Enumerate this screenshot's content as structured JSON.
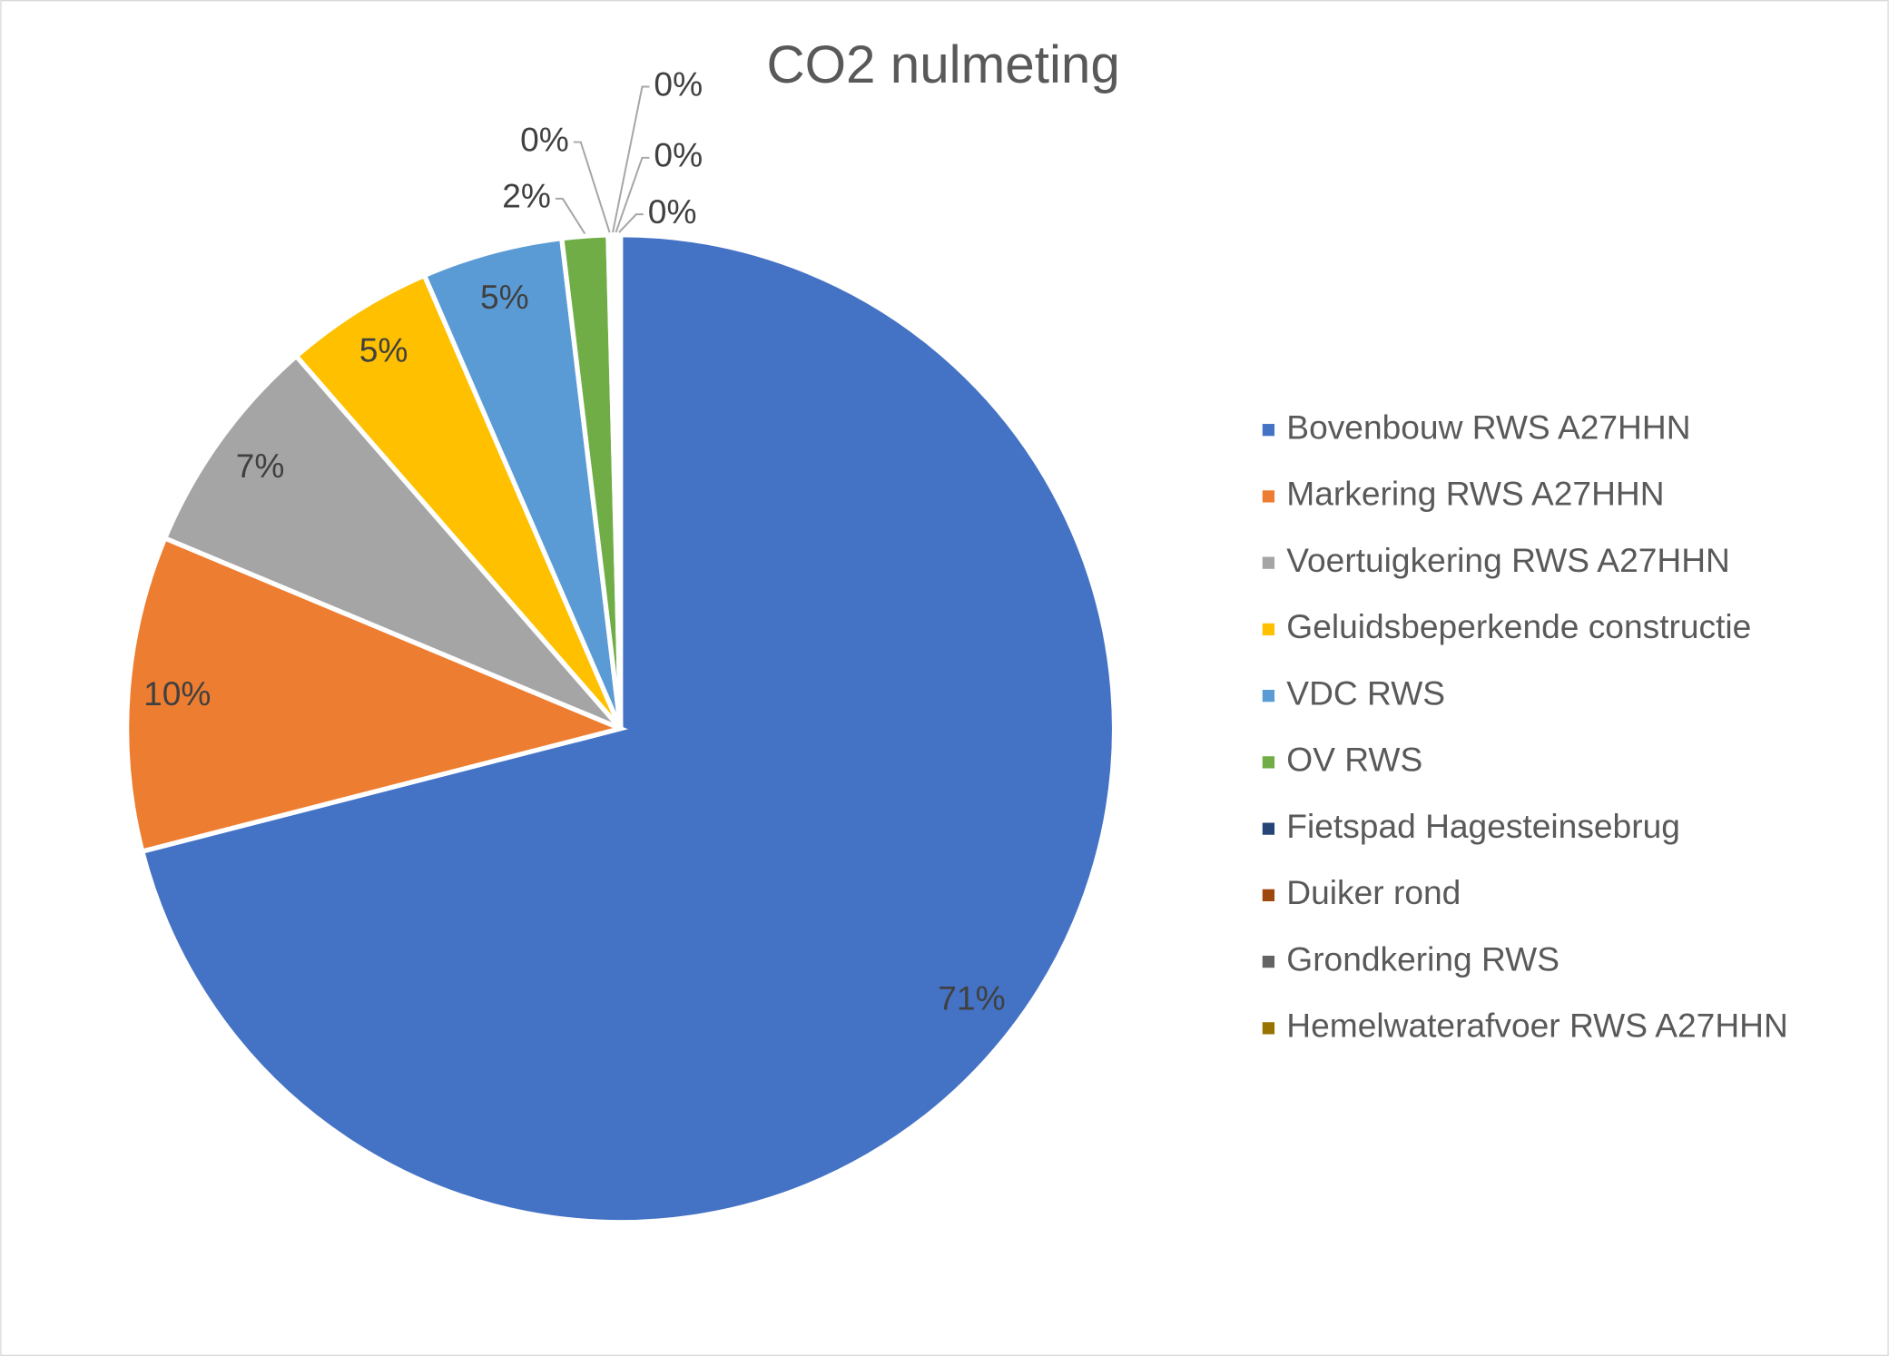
{
  "chart_data": {
    "type": "pie",
    "title": "CO2 nulmeting",
    "categories": [
      "Bovenbouw RWS A27HHN",
      "Markering RWS A27HHN",
      "Voertuigkering RWS A27HHN",
      "Geluidsbeperkende constructie",
      "VDC RWS",
      "OV RWS",
      "Fietspad Hagesteinsebrug",
      "Duiker rond",
      "Grondkering RWS",
      "Hemelwaterafvoer RWS A27HHN"
    ],
    "values": [
      71.0,
      10.3,
      7.3,
      4.9,
      4.6,
      1.5,
      0.1,
      0.1,
      0.1,
      0.1
    ],
    "value_labels": [
      "71%",
      "10%",
      "7%",
      "5%",
      "5%",
      "2%",
      "0%",
      "0%",
      "0%",
      "0%"
    ],
    "colors": [
      "#4472c4",
      "#ed7d31",
      "#a5a5a5",
      "#ffc000",
      "#5b9bd5",
      "#70ad47",
      "#264478",
      "#9e480e",
      "#636363",
      "#997300"
    ],
    "legend": "right"
  }
}
